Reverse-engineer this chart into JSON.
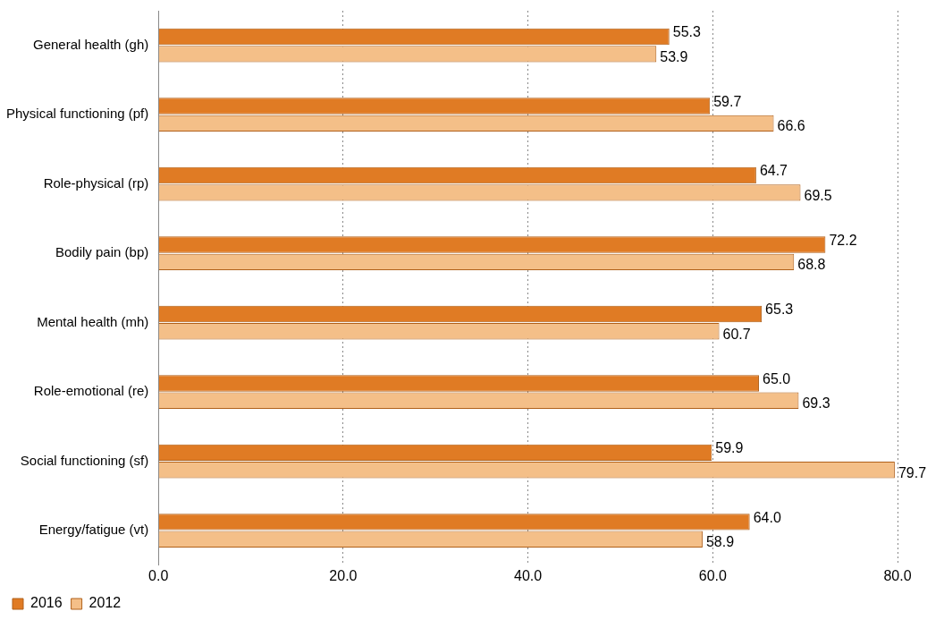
{
  "chart_data": {
    "type": "bar",
    "orientation": "horizontal",
    "categories": [
      "General health (gh)",
      "Physical functioning (pf)",
      "Role-physical (rp)",
      "Bodily pain (bp)",
      "Mental health (mh)",
      "Role-emotional (re)",
      "Social functioning (sf)",
      "Energy/fatigue (vt)"
    ],
    "series": [
      {
        "name": "2016",
        "color": "#e07b24",
        "values": [
          55.3,
          59.7,
          64.7,
          72.2,
          65.3,
          65.0,
          59.9,
          64.0
        ],
        "value_labels": [
          "55.3",
          "59.7",
          "64.7",
          "72.2",
          "65.3",
          "65.0",
          "59.9",
          "64.0"
        ]
      },
      {
        "name": "2012",
        "color": "#f4bf88",
        "values": [
          53.9,
          66.6,
          69.5,
          68.8,
          60.7,
          69.3,
          79.7,
          58.9
        ],
        "value_labels": [
          "53.9",
          "66.6",
          "69.5",
          "68.8",
          "60.7",
          "69.3",
          "79.7",
          "58.9"
        ]
      }
    ],
    "xlim": [
      0,
      80
    ],
    "xticks": [
      {
        "value": 0,
        "label": "0.0"
      },
      {
        "value": 20,
        "label": "20.0"
      },
      {
        "value": 40,
        "label": "40.0"
      },
      {
        "value": 60,
        "label": "60.0"
      },
      {
        "value": 80,
        "label": "80.0"
      }
    ],
    "grid": "x",
    "legend": "bottom left"
  }
}
